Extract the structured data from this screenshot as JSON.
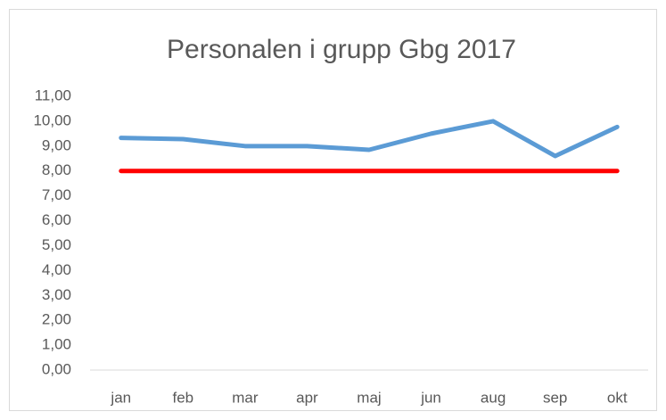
{
  "chart_data": {
    "type": "line",
    "title": "Personalen i grupp Gbg 2017",
    "categories": [
      "jan",
      "feb",
      "mar",
      "apr",
      "maj",
      "jun",
      "aug",
      "sep",
      "okt"
    ],
    "series": [
      {
        "color": "#5b9bd5",
        "values": [
          9.33,
          9.28,
          9.0,
          9.0,
          8.85,
          9.5,
          10.0,
          8.6,
          9.77
        ]
      },
      {
        "color": "#ff0000",
        "values": [
          8,
          8,
          8,
          8,
          8,
          8,
          8,
          8,
          8
        ]
      }
    ],
    "ylim": [
      0,
      11
    ],
    "yticks": [
      {
        "value": 0,
        "label": "0,00"
      },
      {
        "value": 1,
        "label": "1,00"
      },
      {
        "value": 2,
        "label": "2,00"
      },
      {
        "value": 3,
        "label": "3,00"
      },
      {
        "value": 4,
        "label": "4,00"
      },
      {
        "value": 5,
        "label": "5,00"
      },
      {
        "value": 6,
        "label": "6,00"
      },
      {
        "value": 7,
        "label": "7,00"
      },
      {
        "value": 8,
        "label": "8,00"
      },
      {
        "value": 9,
        "label": "9,00"
      },
      {
        "value": 10,
        "label": "10,00"
      },
      {
        "value": 11,
        "label": "11,00"
      }
    ],
    "grid": false
  }
}
